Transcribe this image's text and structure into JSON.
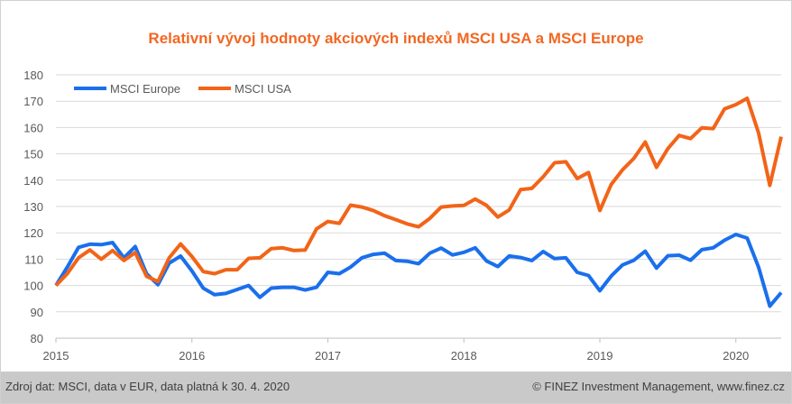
{
  "chart_data": {
    "type": "line",
    "title": "Relativní vývoj hodnoty akciových indexů MSCI USA a MSCI Europe",
    "xlabel": "",
    "ylabel": "",
    "ylim": [
      80,
      180
    ],
    "yticks": [
      80,
      90,
      100,
      110,
      120,
      130,
      140,
      150,
      160,
      170,
      180
    ],
    "xtick_labels": [
      {
        "label": "2015",
        "index": 0
      },
      {
        "label": "2016",
        "index": 12
      },
      {
        "label": "2017",
        "index": 24
      },
      {
        "label": "2018",
        "index": 36
      },
      {
        "label": "2019",
        "index": 48
      },
      {
        "label": "2020",
        "index": 60
      }
    ],
    "grid": true,
    "legend_position": "top-left",
    "series": [
      {
        "name": "MSCI Europe",
        "color": "#1a6fec",
        "values": [
          100,
          107,
          114.5,
          115.7,
          115.5,
          116.3,
          110.5,
          114.8,
          104.5,
          100.3,
          108.5,
          111.2,
          105.5,
          99,
          96.5,
          97,
          98.5,
          100,
          95.5,
          99,
          99.3,
          99.3,
          98.3,
          99.3,
          105,
          104.5,
          107,
          110.5,
          111.8,
          112.3,
          109.5,
          109.2,
          108.3,
          112.3,
          114.2,
          111.6,
          112.6,
          114.3,
          109.3,
          107.2,
          111.2,
          110.6,
          109.5,
          112.9,
          110.2,
          110.5,
          105,
          103.8,
          98,
          103.6,
          107.8,
          109.6,
          113,
          106.6,
          111.3,
          111.5,
          109.6,
          113.6,
          114.3,
          117.2,
          119.4,
          118,
          107,
          92.2,
          97.3
        ]
      },
      {
        "name": "MSCI USA",
        "color": "#f26418",
        "values": [
          100,
          104.5,
          110.5,
          113.5,
          110,
          113.3,
          109.5,
          112.5,
          103.5,
          101.5,
          110.5,
          115.8,
          111,
          105.3,
          104.5,
          106,
          106,
          110.3,
          110.5,
          114,
          114.3,
          113.3,
          113.5,
          121.5,
          124.3,
          123.6,
          130.5,
          129.8,
          128.5,
          126.5,
          125,
          123.4,
          122.3,
          125.5,
          129.8,
          130.2,
          130.4,
          132.8,
          130.4,
          126,
          128.7,
          136.4,
          136.9,
          141.3,
          146.6,
          147,
          140.6,
          142.9,
          128.5,
          138.4,
          143.9,
          148.3,
          154.5,
          144.9,
          152,
          157,
          155.8,
          159.9,
          159.6,
          167.1,
          168.7,
          171.1,
          158,
          138,
          156.5
        ]
      }
    ]
  },
  "footer": {
    "source": "Zdroj dat: MSCI, data v EUR, data platná k 30. 4. 2020",
    "copyright": "© FINEZ Investment Management, www.finez.cz"
  }
}
